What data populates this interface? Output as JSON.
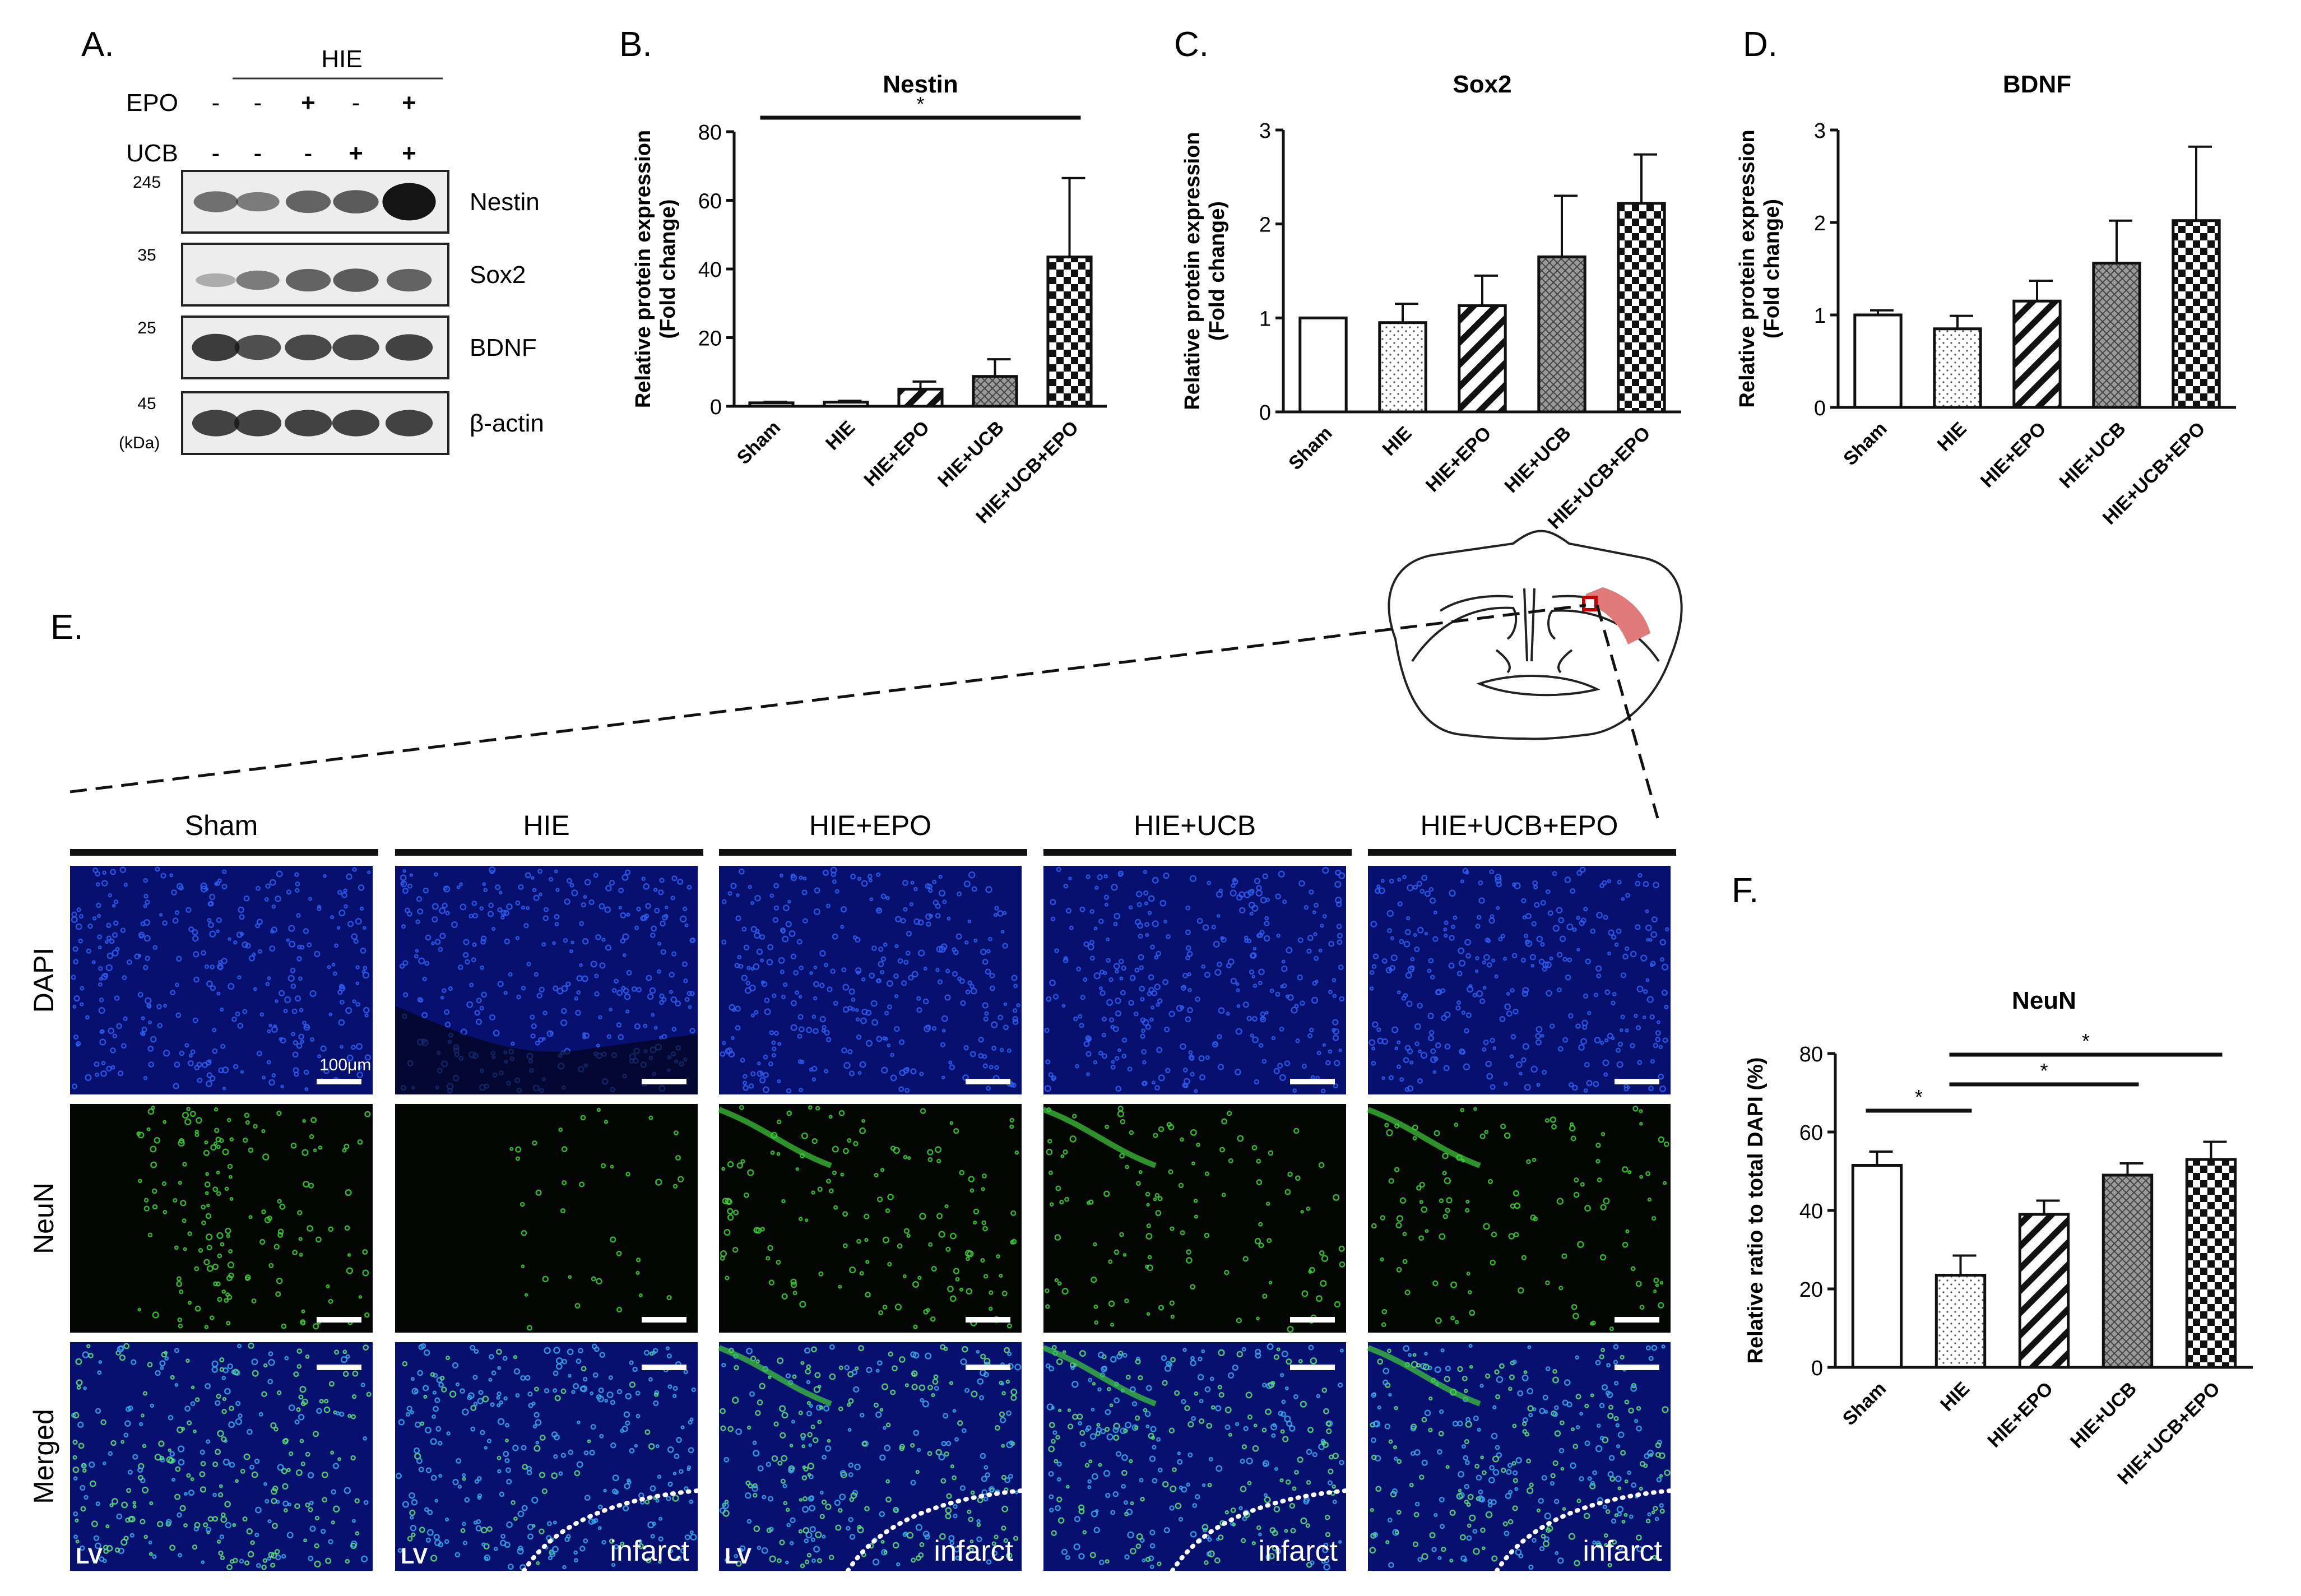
{
  "panel_letters": {
    "a": "A.",
    "b": "B.",
    "c": "C.",
    "d": "D.",
    "e": "E.",
    "f": "F."
  },
  "western": {
    "hie_label": "HIE",
    "rows": [
      {
        "label": "EPO",
        "signs": [
          "-",
          "-",
          "+",
          "-",
          "+"
        ]
      },
      {
        "label": "UCB",
        "signs": [
          "-",
          "-",
          "-",
          "+",
          "+"
        ]
      }
    ],
    "bands": [
      {
        "name": "Nestin",
        "mw": "245"
      },
      {
        "name": "Sox2",
        "mw": "35"
      },
      {
        "name": "BDNF",
        "mw": "25"
      },
      {
        "name": "β-actin",
        "mw": "45"
      }
    ],
    "kda": "(kDa)"
  },
  "if_panel": {
    "groups": [
      "Sham",
      "HIE",
      "HIE+EPO",
      "HIE+UCB",
      "HIE+UCB+EPO"
    ],
    "rows": [
      "DAPI",
      "NeuN",
      "Merged"
    ],
    "scalebar_label": "100μm",
    "lv": "LV",
    "infarct": "infarct"
  },
  "chart_data": [
    {
      "id": "B",
      "type": "bar",
      "title": "Nestin",
      "ylabel": "Relative protein expression (Fold change)",
      "ylabel_lines": [
        "Relative protein expression",
        "(Fold change)"
      ],
      "categories": [
        "Sham",
        "HIE",
        "HIE+EPO",
        "HIE+UCB",
        "HIE+UCB+EPO"
      ],
      "values": [
        1,
        1.2,
        5,
        8.7,
        43.5
      ],
      "errors": [
        0.3,
        0.4,
        2.2,
        5,
        23
      ],
      "ylim": [
        0,
        80
      ],
      "yticks": [
        0,
        20,
        40,
        60,
        80
      ],
      "sig": [
        {
          "from": 0,
          "to": 4,
          "label": "*"
        }
      ]
    },
    {
      "id": "C",
      "type": "bar",
      "title": "Sox2",
      "ylabel": "Relative protein expression (Fold change)",
      "ylabel_lines": [
        "Relative protein expression",
        "(Fold change)"
      ],
      "categories": [
        "Sham",
        "HIE",
        "HIE+EPO",
        "HIE+UCB",
        "HIE+UCB+EPO"
      ],
      "values": [
        1,
        0.95,
        1.13,
        1.65,
        2.22
      ],
      "errors": [
        0,
        0.2,
        0.32,
        0.65,
        0.52
      ],
      "ylim": [
        0,
        3
      ],
      "yticks": [
        0,
        1,
        2,
        3
      ],
      "sig": []
    },
    {
      "id": "D",
      "type": "bar",
      "title": "BDNF",
      "ylabel": "Relative protein expression (Fold change)",
      "ylabel_lines": [
        "Relative protein expression",
        "(Fold change)"
      ],
      "categories": [
        "Sham",
        "HIE",
        "HIE+EPO",
        "HIE+UCB",
        "HIE+UCB+EPO"
      ],
      "values": [
        1,
        0.85,
        1.15,
        1.56,
        2.02
      ],
      "errors": [
        0.05,
        0.14,
        0.22,
        0.46,
        0.8
      ],
      "ylim": [
        0,
        3
      ],
      "yticks": [
        0,
        1,
        2,
        3
      ],
      "sig": []
    },
    {
      "id": "F",
      "type": "bar",
      "title": "NeuN",
      "ylabel": "Relative ratio to total DAPI (%)",
      "ylabel_lines": [
        "Relative ratio to total DAPI (%)"
      ],
      "categories": [
        "Sham",
        "HIE",
        "HIE+EPO",
        "HIE+UCB",
        "HIE+UCB+EPO"
      ],
      "values": [
        51.5,
        23.5,
        39,
        49,
        53
      ],
      "errors": [
        3.5,
        5,
        3.5,
        3,
        4.5
      ],
      "ylim": [
        0,
        80
      ],
      "yticks": [
        0,
        20,
        40,
        60,
        80
      ],
      "sig": [
        {
          "from": 0,
          "to": 1,
          "label": "*"
        },
        {
          "from": 1,
          "to": 3,
          "label": "*"
        },
        {
          "from": 1,
          "to": 4,
          "label": "*"
        }
      ]
    }
  ],
  "colors": {
    "dapi_bg": "#07106e",
    "dapi_dot": "#2a57e6",
    "neun_dot": "#3fcf3a",
    "infarct_zone": "#e07a7a",
    "text": "#111111"
  }
}
